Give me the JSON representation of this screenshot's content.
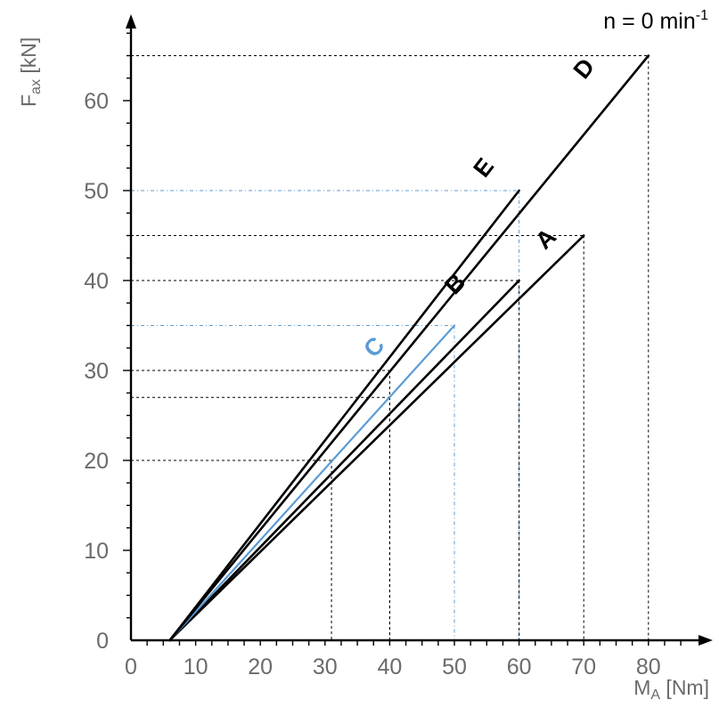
{
  "chart_data": {
    "type": "line",
    "xlabel": "M",
    "xlabel_sub": "A",
    "xlabel_unit": " [Nm]",
    "ylabel": "F",
    "ylabel_sub": "ax",
    "ylabel_unit": " [kN]",
    "annotation": "n = 0 min",
    "annotation_sup": "-1",
    "xlim": [
      0,
      87
    ],
    "ylim": [
      0,
      69
    ],
    "xticks": [
      0,
      10,
      20,
      30,
      40,
      50,
      60,
      70,
      80
    ],
    "yticks": [
      0,
      10,
      20,
      30,
      40,
      50,
      60
    ],
    "grid": false,
    "series": [
      {
        "name": "A",
        "color": "#000000",
        "points": [
          [
            6,
            0
          ],
          [
            70,
            45
          ]
        ]
      },
      {
        "name": "B",
        "color": "#000000",
        "points": [
          [
            6,
            0
          ],
          [
            60,
            40
          ]
        ]
      },
      {
        "name": "C",
        "color": "#5b9bd5",
        "points": [
          [
            6,
            0
          ],
          [
            50,
            35
          ]
        ]
      },
      {
        "name": "D",
        "color": "#000000",
        "points": [
          [
            6,
            0
          ],
          [
            80,
            65
          ]
        ]
      },
      {
        "name": "E",
        "color": "#000000",
        "points": [
          [
            6,
            0
          ],
          [
            60,
            50
          ]
        ]
      }
    ],
    "reference_lines": [
      {
        "x": 80,
        "y": 65,
        "color": "#000000"
      },
      {
        "x": 70,
        "y": 45,
        "color": "#000000"
      },
      {
        "x": 60,
        "y": 50,
        "color": "#5b9bd5"
      },
      {
        "x": 60,
        "y": 40,
        "color": "#000000"
      },
      {
        "x": 50,
        "y": 35,
        "color": "#5b9bd5"
      },
      {
        "x": 40,
        "y": 30,
        "color": "#000000"
      },
      {
        "x": 40,
        "y": 27,
        "color": "#000000"
      },
      {
        "x": 31,
        "y": 20,
        "color": "#000000"
      }
    ]
  }
}
